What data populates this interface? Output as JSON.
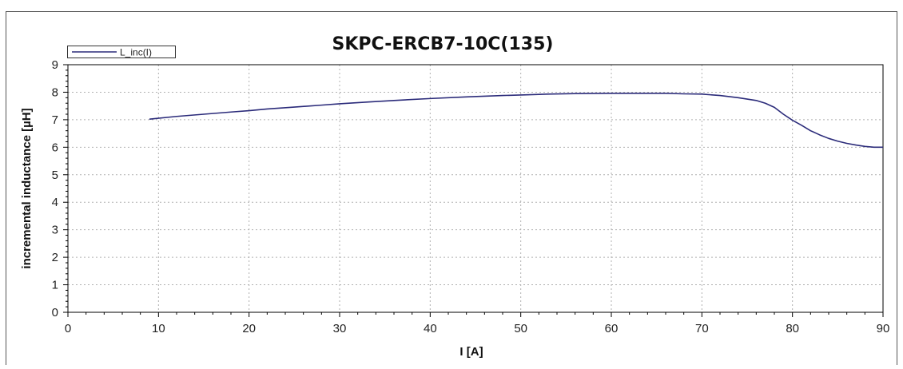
{
  "chart_data": {
    "type": "line",
    "title": "SKPC-ERCB7-10C(135)",
    "xlabel": "I [A]",
    "ylabel": "incremental inductance [µH]",
    "xlim": [
      0,
      90
    ],
    "ylim": [
      0,
      9
    ],
    "x_ticks": [
      "0",
      "10",
      "20",
      "30",
      "40",
      "50",
      "60",
      "70",
      "80",
      "90"
    ],
    "y_ticks": [
      "0",
      "1",
      "2",
      "3",
      "4",
      "5",
      "6",
      "7",
      "8",
      "9"
    ],
    "grid": true,
    "legend_position": "top-left",
    "colors": {
      "series": "#2b2b7a",
      "grid": "#b0b0b0",
      "frame": "#000000"
    },
    "series": [
      {
        "name": "L_inc(I)",
        "x": [
          9,
          12,
          15,
          18,
          20,
          22,
          25,
          28,
          30,
          33,
          36,
          40,
          44,
          48,
          50,
          53,
          56,
          60,
          63,
          66,
          68,
          70,
          72,
          74,
          76,
          77,
          78,
          79,
          80,
          81,
          82,
          83,
          84,
          85,
          86,
          87,
          88,
          89,
          90
        ],
        "y": [
          7.02,
          7.12,
          7.2,
          7.28,
          7.33,
          7.39,
          7.46,
          7.53,
          7.58,
          7.64,
          7.7,
          7.77,
          7.83,
          7.88,
          7.9,
          7.93,
          7.95,
          7.96,
          7.96,
          7.96,
          7.94,
          7.93,
          7.88,
          7.8,
          7.7,
          7.6,
          7.45,
          7.2,
          6.98,
          6.8,
          6.6,
          6.45,
          6.32,
          6.22,
          6.14,
          6.08,
          6.03,
          6.0,
          6.0
        ]
      }
    ]
  }
}
